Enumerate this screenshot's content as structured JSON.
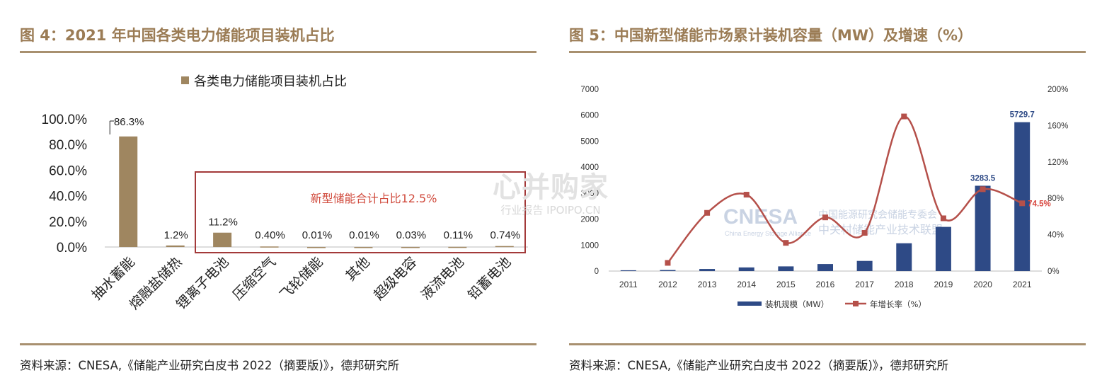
{
  "figures": [
    {
      "title": "图 4：2021 年中国各类电力储能项目装机占比",
      "source": "资料来源：CNESA,《储能产业研究白皮书 2022（摘要版)》，德邦研究所"
    },
    {
      "title": "图 5：中国新型储能市场累计装机容量（MW）及增速（%）",
      "source": "资料来源：CNESA,《储能产业研究白皮书 2022（摘要版)》，德邦研究所"
    }
  ],
  "watermark": {
    "big": "心并购家",
    "small": "行业报告 IPOIPO.CN"
  },
  "chart_data": [
    {
      "type": "bar",
      "legend": [
        "各类电力储能项目装机占比"
      ],
      "legend_position": "top",
      "categories": [
        "抽水蓄能",
        "熔融盐储热",
        "锂离子电池",
        "压缩空气",
        "飞轮储能",
        "其他",
        "超级电容",
        "液流电池",
        "铅蓄电池"
      ],
      "values": [
        86.3,
        1.2,
        11.2,
        0.4,
        0.01,
        0.01,
        0.03,
        0.11,
        0.74
      ],
      "data_labels": [
        "86.3%",
        "1.2%",
        "11.2%",
        "0.40%",
        "0.01%",
        "0.01%",
        "0.03%",
        "0.11%",
        "0.74%"
      ],
      "ylim": [
        0,
        100
      ],
      "yticks": [
        "0.0%",
        "20.0%",
        "40.0%",
        "60.0%",
        "80.0%",
        "100.0%"
      ],
      "annotation": "新型储能合计占比12.5%",
      "colors": {
        "bar": "#9f8660",
        "box": "#a33a3a",
        "annotation": "#d04a3c"
      }
    },
    {
      "type": "bar+line",
      "categories": [
        "2011",
        "2012",
        "2013",
        "2014",
        "2015",
        "2016",
        "2017",
        "2018",
        "2019",
        "2020",
        "2021"
      ],
      "series": [
        {
          "name": "装机规模（MW）",
          "type": "bar",
          "axis": "left",
          "values": [
            30,
            40,
            80,
            140,
            180,
            270,
            390,
            1070,
            1700,
            3283.5,
            5729.7
          ]
        },
        {
          "name": "年增长率（%）",
          "type": "line",
          "axis": "right",
          "values": [
            null,
            9,
            64,
            84,
            31,
            59,
            42,
            170,
            58,
            90,
            74.5
          ]
        }
      ],
      "data_labels": {
        "2020": "3283.5",
        "2021": "5729.7",
        "growth_2021": "74.5%"
      },
      "ylim_left": [
        0,
        7000
      ],
      "yticks_left": [
        "0",
        "1000",
        "2000",
        "3000",
        "4000",
        "5000",
        "6000",
        "7000"
      ],
      "ylim_right": [
        0,
        200
      ],
      "yticks_right": [
        "0%",
        "40%",
        "80%",
        "120%",
        "160%",
        "200%"
      ],
      "legend_position": "bottom",
      "logo": {
        "mark": "CNESA",
        "tagline": "China Energy Storage Alliance",
        "org_line1": "中国能源研究会储能专委会",
        "org_line2": "中关村储能产业技术联盟"
      },
      "colors": {
        "bar": "#2e4a86",
        "line": "#b5504a",
        "marker": "#b5504a"
      }
    }
  ]
}
